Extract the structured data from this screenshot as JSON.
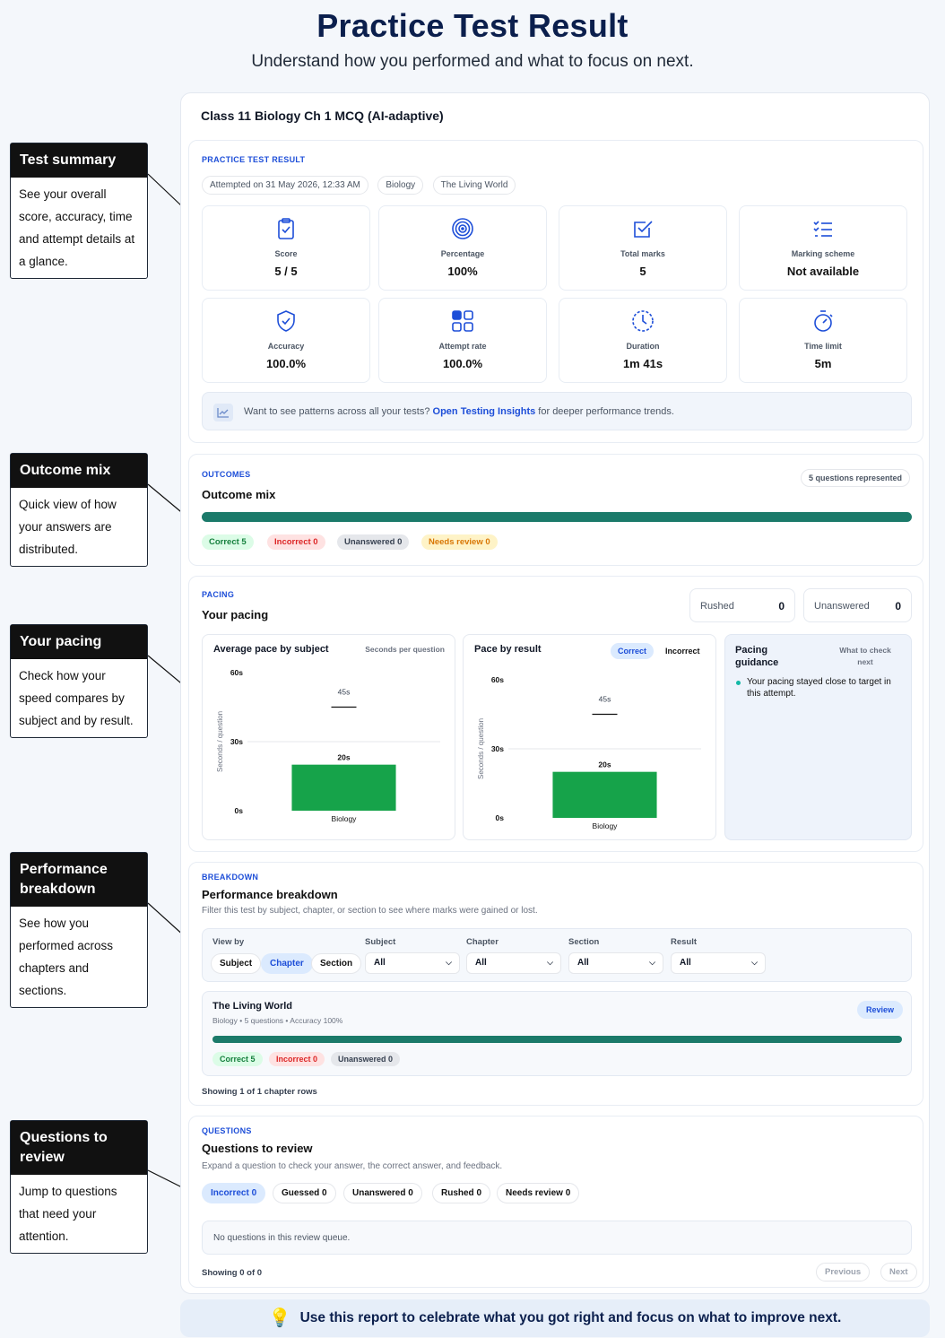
{
  "header": {
    "title": "Practice Test Result",
    "subtitle": "Understand how you performed and what to focus on next."
  },
  "callouts": [
    {
      "title": "Test summary",
      "body": "See your overall score, accuracy, time and attempt details at a glance."
    },
    {
      "title": "Outcome mix",
      "body": "Quick view of how your answers are distributed."
    },
    {
      "title": "Your pacing",
      "body": "Check how your speed compares by subject and by result."
    },
    {
      "title": "Performance breakdown",
      "body": "See how you performed across chapters and sections."
    },
    {
      "title": "Questions to review",
      "body": "Jump to questions that need your attention."
    }
  ],
  "test": {
    "title": "Class 11 Biology Ch 1 MCQ (AI-adaptive)"
  },
  "summary": {
    "eyebrow": "PRACTICE TEST RESULT",
    "attempted": "Attempted on 31 May 2026, 12:33 AM",
    "subject_chip": "Biology",
    "chapter_chip": "The Living World",
    "stats": [
      {
        "icon": "clipboard-check-icon",
        "label": "Score",
        "value": "5 / 5"
      },
      {
        "icon": "target-icon",
        "label": "Percentage",
        "value": "100%"
      },
      {
        "icon": "checkbox-icon",
        "label": "Total marks",
        "value": "5"
      },
      {
        "icon": "list-check-icon",
        "label": "Marking scheme",
        "value": "Not available"
      },
      {
        "icon": "shield-check-icon",
        "label": "Accuracy",
        "value": "100.0%"
      },
      {
        "icon": "grid-icon",
        "label": "Attempt rate",
        "value": "100.0%"
      },
      {
        "icon": "clock-icon",
        "label": "Duration",
        "value": "1m 41s"
      },
      {
        "icon": "stopwatch-icon",
        "label": "Time limit",
        "value": "5m"
      }
    ],
    "insights_prefix": "Want to see patterns across all your tests?",
    "insights_link": "Open Testing Insights",
    "insights_suffix": "for deeper performance trends."
  },
  "outcomes": {
    "eyebrow": "OUTCOMES",
    "title": "Outcome mix",
    "represented": "5 questions represented",
    "correct_fraction": 1.0,
    "pills": {
      "correct": "Correct 5",
      "incorrect": "Incorrect 0",
      "unanswered": "Unanswered 0",
      "review": "Needs review 0"
    }
  },
  "pacing": {
    "eyebrow": "PACING",
    "title": "Your pacing",
    "rushed_label": "Rushed",
    "rushed_value": "0",
    "unanswered_label": "Unanswered",
    "unanswered_value": "0",
    "subject_chart_title": "Average pace by subject",
    "subject_chart_unit": "Seconds per question",
    "result_chart_title": "Pace by result",
    "toggle_correct": "Correct",
    "toggle_incorrect": "Incorrect",
    "guidance_title": "Pacing guidance",
    "guidance_link": "What to check next",
    "guidance_text": "Your pacing stayed close to target in this attempt."
  },
  "chart_data": [
    {
      "type": "bar",
      "title": "Average pace by subject",
      "subtitle": "Seconds per question",
      "ylabel": "Seconds / question",
      "categories": [
        "Biology"
      ],
      "values": [
        20
      ],
      "target_marker": 45,
      "value_labels": [
        "20s"
      ],
      "target_label": "45s",
      "yticks": [
        "0s",
        "30s",
        "60s"
      ],
      "ylim": [
        0,
        60
      ],
      "color": "#16a34a"
    },
    {
      "type": "bar",
      "title": "Pace by result",
      "ylabel": "Seconds / question",
      "categories": [
        "Biology"
      ],
      "values": [
        20
      ],
      "target_marker": 45,
      "value_labels": [
        "20s"
      ],
      "target_label": "45s",
      "yticks": [
        "0s",
        "30s",
        "60s"
      ],
      "ylim": [
        0,
        60
      ],
      "color": "#16a34a"
    }
  ],
  "breakdown": {
    "eyebrow": "BREAKDOWN",
    "title": "Performance breakdown",
    "desc": "Filter this test by subject, chapter, or section to see where marks were gained or lost.",
    "view_by_label": "View by",
    "view_by": [
      "Subject",
      "Chapter",
      "Section"
    ],
    "filters": [
      {
        "label": "Subject",
        "value": "All"
      },
      {
        "label": "Chapter",
        "value": "All"
      },
      {
        "label": "Section",
        "value": "All"
      },
      {
        "label": "Result",
        "value": "All"
      }
    ],
    "row": {
      "title": "The Living World",
      "meta": "Biology • 5 questions • Accuracy 100%",
      "review_button": "Review",
      "accuracy_fraction": 1.0,
      "pills": {
        "correct": "Correct 5",
        "incorrect": "Incorrect 0",
        "unanswered": "Unanswered 0"
      }
    },
    "showing": "Showing 1 of 1 chapter rows"
  },
  "questions": {
    "eyebrow": "QUESTIONS",
    "title": "Questions to review",
    "desc": "Expand a question to check your answer, the correct answer, and feedback.",
    "filters": [
      "Incorrect 0",
      "Guessed 0",
      "Unanswered 0",
      "Rushed 0",
      "Needs review 0"
    ],
    "empty": "No questions in this review queue.",
    "showing": "Showing 0 of 0",
    "prev": "Previous",
    "next": "Next"
  },
  "footer": {
    "text": "Use this report to celebrate what you got right and focus on what to improve next."
  },
  "colors": {
    "accent": "#1d4ed8",
    "progress": "#1b7a6a",
    "bar": "#16a34a"
  }
}
